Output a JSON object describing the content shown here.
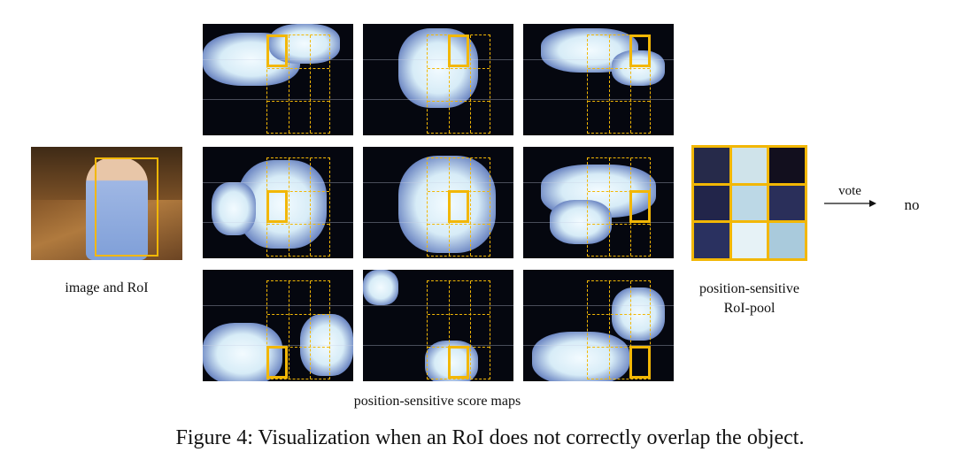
{
  "labels": {
    "image_and_roi": "image and RoI",
    "score_maps": "position-sensitive score maps",
    "pool_line1": "position-sensitive",
    "pool_line2": "RoI-pool",
    "vote": "vote",
    "result": "no"
  },
  "caption": "Figure 4: Visualization when an RoI does not correctly overlap the object.",
  "colors": {
    "highlight": "#f2b705",
    "pool_cells": [
      "#262a4a",
      "#cfe3ea",
      "#120f1e",
      "#22254a",
      "#bcd8e6",
      "#2a2f5a",
      "#2a3160",
      "#e6f2f6",
      "#a9cadc"
    ]
  }
}
